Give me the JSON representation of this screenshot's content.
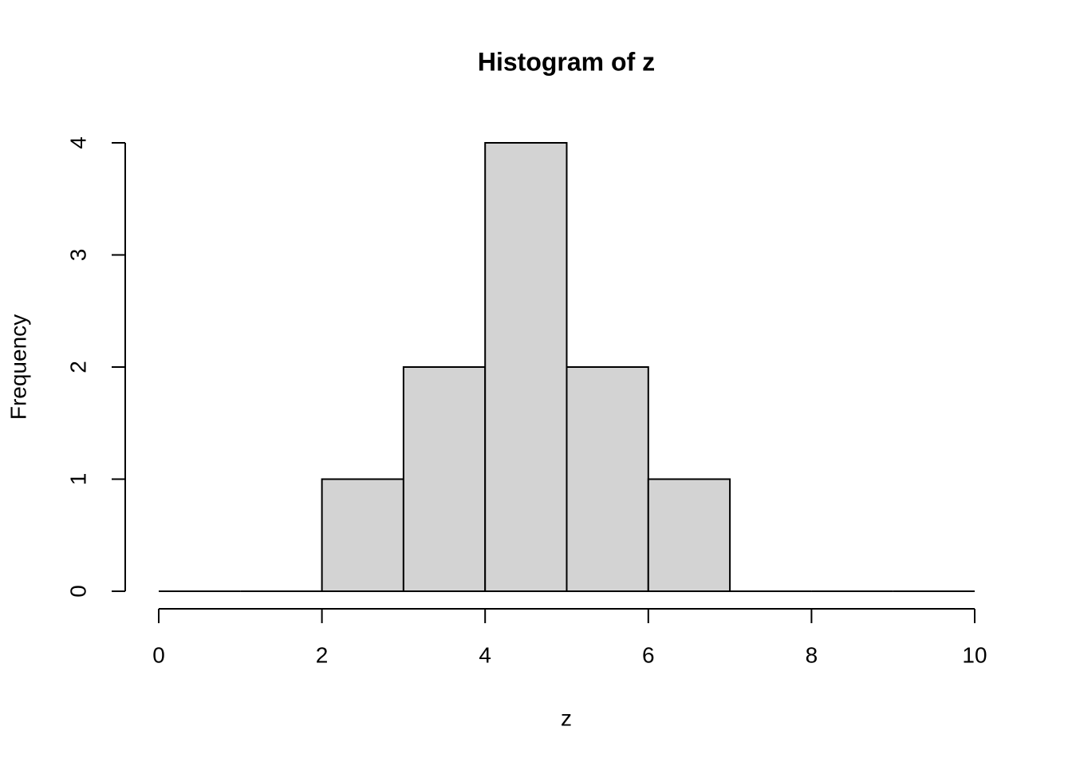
{
  "chart_data": {
    "type": "histogram",
    "title": "Histogram of z",
    "x_label": "z",
    "y_label": "Frequency",
    "bins": [
      0,
      1,
      2,
      3,
      4,
      5,
      6,
      7,
      8,
      9,
      10
    ],
    "values": [
      0,
      0,
      1,
      2,
      4,
      2,
      1,
      0,
      0,
      0
    ],
    "color": "#d3d3d3",
    "xlim": [
      0,
      10
    ],
    "xticks": [
      0,
      2,
      4,
      6,
      8,
      10
    ],
    "ylim": [
      0,
      4
    ],
    "yticks": [
      0,
      1,
      2,
      3,
      4
    ]
  }
}
